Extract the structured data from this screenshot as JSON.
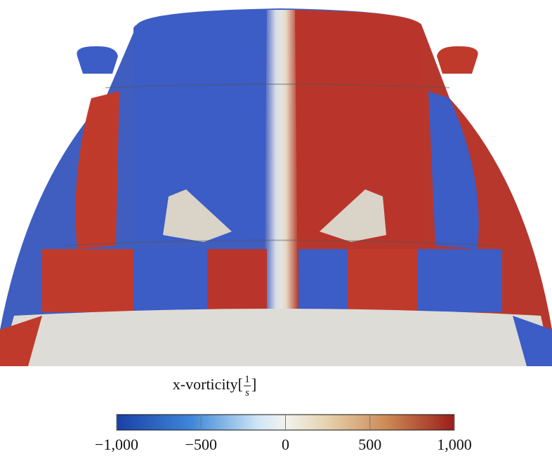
{
  "colorbar": {
    "label": {
      "prefix": "x-vorticity[",
      "numerator": "1",
      "denominator": "s",
      "suffix": "]"
    },
    "lim": [
      -1000,
      1000
    ],
    "ticks": [
      {
        "value": -1000,
        "label": "−1,000"
      },
      {
        "value": -500,
        "label": "−500"
      },
      {
        "value": 0,
        "label": "0"
      },
      {
        "value": 500,
        "label": "500"
      },
      {
        "value": 1000,
        "label": "1,000"
      }
    ]
  }
}
